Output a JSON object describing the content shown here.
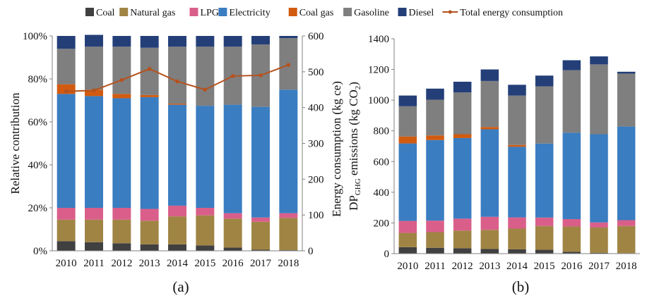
{
  "legend": [
    {
      "name": "Coal",
      "color": "#404040",
      "marker": "box"
    },
    {
      "name": "Natural gas",
      "color": "#a08444",
      "marker": "box"
    },
    {
      "name": "LPG",
      "color": "#d95f8a",
      "marker": "box"
    },
    {
      "name": "Electricity",
      "color": "#3a7dc1",
      "marker": "box"
    },
    {
      "name": "Coal gas",
      "color": "#d15b10",
      "marker": "box"
    },
    {
      "name": "Gasoline",
      "color": "#7f7f7f",
      "marker": "box"
    },
    {
      "name": "Diesel",
      "color": "#243f78",
      "marker": "box"
    },
    {
      "name": "Total energy consumption",
      "color": "#b5521f",
      "marker": "line"
    }
  ],
  "chart_data": [
    {
      "type": "bar",
      "stacked": true,
      "panel_label": "(a)",
      "categories": [
        "2010",
        "2011",
        "2012",
        "2013",
        "2014",
        "2015",
        "2016",
        "2017",
        "2018"
      ],
      "ylabel": "Relative contribution",
      "ylim": [
        0,
        100
      ],
      "y_ticks": [
        "0%",
        "20%",
        "40%",
        "60%",
        "80%",
        "100%"
      ],
      "series": [
        {
          "name": "Coal",
          "color": "#404040",
          "values": [
            4.5,
            4,
            3.5,
            3,
            3,
            2.5,
            1.5,
            0.5,
            0.3
          ]
        },
        {
          "name": "Natural gas",
          "color": "#a08444",
          "values": [
            10,
            10.5,
            11,
            11,
            13,
            14,
            13.5,
            13,
            15
          ]
        },
        {
          "name": "LPG",
          "color": "#d95f8a",
          "values": [
            5.5,
            5.5,
            5.5,
            5.5,
            5,
            3.5,
            2.5,
            2,
            2.2
          ]
        },
        {
          "name": "Electricity",
          "color": "#3a7dc1",
          "values": [
            53,
            52,
            51,
            52,
            47,
            47.5,
            50.5,
            51.5,
            57.5
          ]
        },
        {
          "name": "Coal gas",
          "color": "#d15b10",
          "values": [
            4.5,
            3,
            2,
            1,
            0.5,
            0,
            0,
            0,
            0
          ]
        },
        {
          "name": "Gasoline",
          "color": "#7f7f7f",
          "values": [
            16.5,
            20,
            22,
            22,
            26.5,
            27.5,
            27,
            29,
            24
          ]
        },
        {
          "name": "Diesel",
          "color": "#243f78",
          "values": [
            6,
            5.5,
            5,
            5.5,
            5,
            5,
            5,
            4,
            1
          ]
        }
      ],
      "secondary_axis": {
        "ylabel": "Energy consumption (kg ce)",
        "ylim": [
          0,
          600
        ],
        "y_ticks": [
          "0",
          "100",
          "200",
          "300",
          "400",
          "500",
          "600"
        ]
      },
      "line_series": {
        "name": "Total energy consumption",
        "color": "#b5521f",
        "values": [
          445,
          448,
          477,
          508,
          473,
          450,
          488,
          490,
          519
        ]
      }
    },
    {
      "type": "bar",
      "stacked": true,
      "panel_label": "(b)",
      "categories": [
        "2010",
        "2011",
        "2012",
        "2013",
        "2014",
        "2015",
        "2016",
        "2017",
        "2018"
      ],
      "ylabel_main": "DP",
      "ylabel_sub": "GHG",
      "ylabel_rest": " emissions (kg CO",
      "ylabel_sub2": "2",
      "ylabel_end": ")",
      "ylim": [
        0,
        1400
      ],
      "y_ticks": [
        "0",
        "200",
        "400",
        "600",
        "800",
        "1000",
        "1200",
        "1400"
      ],
      "series": [
        {
          "name": "Coal",
          "color": "#404040",
          "values": [
            42,
            38,
            35,
            30,
            28,
            25,
            12,
            5,
            3
          ]
        },
        {
          "name": "Natural gas",
          "color": "#a08444",
          "values": [
            93,
            102,
            115,
            125,
            135,
            155,
            165,
            165,
            177
          ]
        },
        {
          "name": "LPG",
          "color": "#d95f8a",
          "values": [
            78,
            75,
            78,
            85,
            73,
            55,
            48,
            33,
            38
          ]
        },
        {
          "name": "Electricity",
          "color": "#3a7dc1",
          "values": [
            505,
            525,
            525,
            570,
            460,
            482,
            563,
            575,
            610
          ]
        },
        {
          "name": "Coal gas",
          "color": "#d15b10",
          "values": [
            45,
            30,
            25,
            15,
            12,
            0,
            0,
            0,
            0
          ]
        },
        {
          "name": "Gasoline",
          "color": "#7f7f7f",
          "values": [
            197,
            233,
            272,
            300,
            322,
            373,
            407,
            455,
            345
          ]
        },
        {
          "name": "Diesel",
          "color": "#243f78",
          "values": [
            70,
            72,
            70,
            75,
            70,
            70,
            65,
            52,
            12
          ]
        }
      ]
    }
  ]
}
